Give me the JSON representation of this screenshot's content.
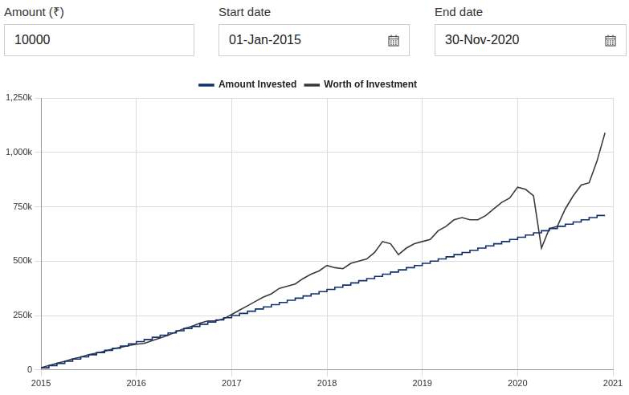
{
  "form": {
    "fields": [
      {
        "label": "Amount (₹)",
        "value": "10000"
      },
      {
        "label": "Start date",
        "value": "01-Jan-2015"
      },
      {
        "label": "End date",
        "value": "30-Nov-2020"
      }
    ]
  },
  "chart_data": {
    "type": "line",
    "x": [
      2015,
      2015.083,
      2015.167,
      2015.25,
      2015.333,
      2015.417,
      2015.5,
      2015.583,
      2015.667,
      2015.75,
      2015.833,
      2015.917,
      2016,
      2016.083,
      2016.167,
      2016.25,
      2016.333,
      2016.417,
      2016.5,
      2016.583,
      2016.667,
      2016.75,
      2016.833,
      2016.917,
      2017,
      2017.083,
      2017.167,
      2017.25,
      2017.333,
      2017.417,
      2017.5,
      2017.583,
      2017.667,
      2017.75,
      2017.833,
      2017.917,
      2018,
      2018.083,
      2018.167,
      2018.25,
      2018.333,
      2018.417,
      2018.5,
      2018.583,
      2018.667,
      2018.75,
      2018.833,
      2018.917,
      2019,
      2019.083,
      2019.167,
      2019.25,
      2019.333,
      2019.417,
      2019.5,
      2019.583,
      2019.667,
      2019.75,
      2019.833,
      2019.917,
      2020,
      2020.083,
      2020.167,
      2020.25,
      2020.333,
      2020.417,
      2020.5,
      2020.583,
      2020.667,
      2020.75,
      2020.833,
      2020.917
    ],
    "series": [
      {
        "name": "Amount Invested",
        "color": "#13306e",
        "line_style": "step",
        "marker": "none",
        "values": [
          10000,
          20000,
          30000,
          40000,
          50000,
          60000,
          70000,
          80000,
          90000,
          100000,
          110000,
          120000,
          130000,
          140000,
          150000,
          160000,
          170000,
          180000,
          190000,
          200000,
          210000,
          220000,
          230000,
          240000,
          250000,
          260000,
          270000,
          280000,
          290000,
          300000,
          310000,
          320000,
          330000,
          340000,
          350000,
          360000,
          370000,
          380000,
          390000,
          400000,
          410000,
          420000,
          430000,
          440000,
          450000,
          460000,
          470000,
          480000,
          490000,
          500000,
          510000,
          520000,
          530000,
          540000,
          550000,
          560000,
          570000,
          580000,
          590000,
          600000,
          610000,
          620000,
          630000,
          640000,
          650000,
          660000,
          670000,
          680000,
          690000,
          700000,
          710000,
          710000
        ]
      },
      {
        "name": "Worth of Investment",
        "color": "#3a3a3a",
        "line_style": "solid",
        "marker": "none",
        "values": [
          10000,
          20500,
          30500,
          39500,
          50500,
          59000,
          70000,
          78000,
          86000,
          96000,
          104000,
          112000,
          118000,
          122000,
          135000,
          147000,
          160000,
          175000,
          190000,
          200000,
          215000,
          225000,
          225000,
          235000,
          255000,
          275000,
          295000,
          315000,
          335000,
          350000,
          375000,
          385000,
          395000,
          420000,
          440000,
          455000,
          480000,
          470000,
          465000,
          490000,
          500000,
          510000,
          540000,
          590000,
          580000,
          530000,
          560000,
          580000,
          590000,
          600000,
          640000,
          660000,
          690000,
          700000,
          690000,
          690000,
          710000,
          740000,
          770000,
          790000,
          840000,
          830000,
          800000,
          560000,
          650000,
          660000,
          740000,
          800000,
          850000,
          860000,
          960000,
          1090000
        ]
      }
    ],
    "xlim": [
      2015,
      2021
    ],
    "xticks": [
      2015,
      2016,
      2017,
      2018,
      2019,
      2020,
      2021
    ],
    "ylim": [
      0,
      1250000
    ],
    "yticks": [
      0,
      {
        "value": 250000,
        "label": "250k"
      },
      {
        "value": 500000,
        "label": "500k"
      },
      {
        "value": 750000,
        "label": "750k"
      },
      {
        "value": 1000000,
        "label": "1,000k"
      },
      {
        "value": 1250000,
        "label": "1,250k"
      }
    ],
    "grid": true,
    "legend": "top"
  }
}
